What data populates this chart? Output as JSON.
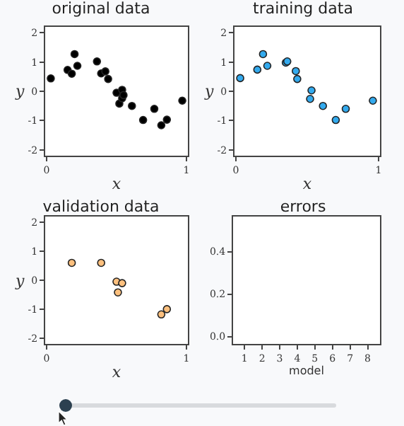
{
  "chart_data": [
    {
      "type": "scatter",
      "title": "original data",
      "xlabel": "x",
      "ylabel": "y",
      "color": "#000000",
      "marker": "circle",
      "grid": false,
      "x": [
        0.03,
        0.15,
        0.18,
        0.2,
        0.22,
        0.36,
        0.39,
        0.42,
        0.44,
        0.5,
        0.52,
        0.54,
        0.54,
        0.55,
        0.61,
        0.69,
        0.77,
        0.82,
        0.86,
        0.97
      ],
      "values": [
        0.44,
        0.73,
        0.6,
        1.27,
        0.87,
        1.02,
        0.61,
        0.68,
        0.42,
        -0.05,
        -0.42,
        0.05,
        -0.24,
        -0.13,
        -0.5,
        -0.98,
        -0.6,
        -1.16,
        -0.97,
        -0.32
      ],
      "xlim": [
        -0.01,
        1.01
      ],
      "xticks": [
        0,
        1
      ],
      "ylim": [
        -2.2,
        2.2
      ],
      "yticks": [
        -2,
        -1,
        0,
        1,
        2
      ]
    },
    {
      "type": "scatter",
      "title": "training data",
      "xlabel": "x",
      "ylabel": "y",
      "color": "#33aaee",
      "marker": "circle",
      "grid": false,
      "x": [
        0.03,
        0.15,
        0.19,
        0.22,
        0.35,
        0.36,
        0.42,
        0.43,
        0.53,
        0.52,
        0.61,
        0.7,
        0.77,
        0.96
      ],
      "values": [
        0.45,
        0.74,
        1.27,
        0.87,
        0.98,
        1.02,
        0.69,
        0.42,
        0.03,
        -0.26,
        -0.5,
        -0.98,
        -0.6,
        -0.32
      ],
      "xlim": [
        -0.01,
        1.01
      ],
      "xticks": [
        0,
        1
      ],
      "ylim": [
        -2.2,
        2.2
      ],
      "yticks": [
        -2,
        -1,
        0,
        1,
        2
      ]
    },
    {
      "type": "scatter",
      "title": "validation data",
      "xlabel": "x",
      "ylabel": "y",
      "color": "#fdc07e",
      "marker": "circle",
      "grid": false,
      "x": [
        0.18,
        0.39,
        0.5,
        0.54,
        0.51,
        0.82,
        0.86
      ],
      "values": [
        0.6,
        0.6,
        -0.05,
        -0.1,
        -0.42,
        -1.18,
        -1.0
      ],
      "xlim": [
        -0.01,
        1.01
      ],
      "xticks": [
        0,
        1
      ],
      "ylim": [
        -2.2,
        2.2
      ],
      "yticks": [
        -2,
        -1,
        0,
        1,
        2
      ]
    },
    {
      "type": "scatter",
      "title": "errors",
      "xlabel": "model",
      "grid": false,
      "xlim": [
        0.35,
        8.7
      ],
      "xticks": [
        1,
        2,
        3,
        4,
        5,
        6,
        7,
        8
      ],
      "ylim": [
        -0.035,
        0.565
      ],
      "yticks": [
        {
          "value": 0,
          "label": "0.0"
        },
        {
          "value": 0.2,
          "label": "0.2"
        },
        {
          "value": 0.4,
          "label": "0.4"
        }
      ]
    }
  ]
}
